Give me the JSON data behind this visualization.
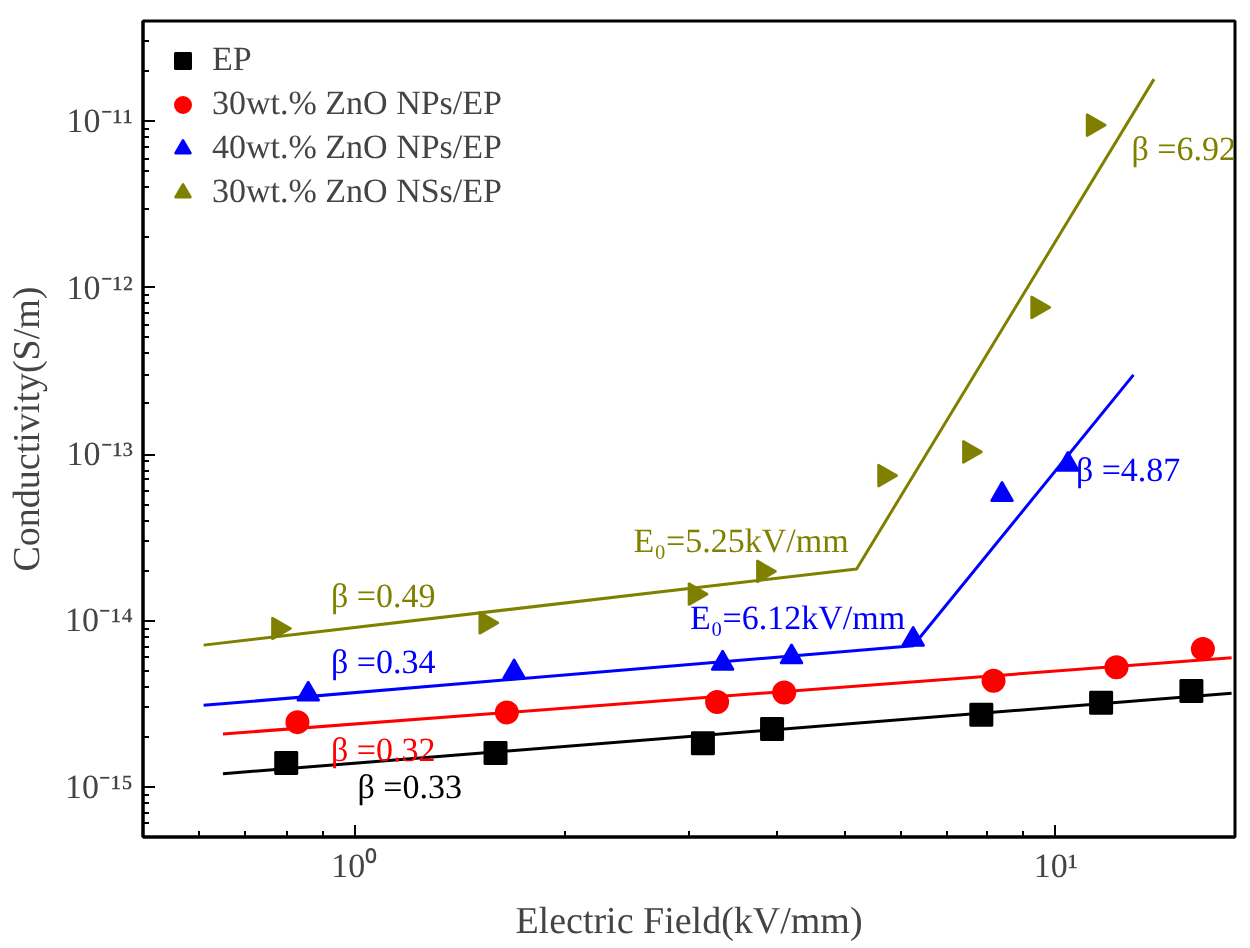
{
  "chart_data": {
    "type": "scatter",
    "xlabel": "Electric Field(kV/mm)",
    "ylabel": "Conductivity(S/m)",
    "log": "xy",
    "grid": false,
    "legend": "top left",
    "xlim": [
      0.5,
      18
    ],
    "ylim": [
      5e-16,
      4e-11
    ],
    "xticks": [
      {
        "value": 1,
        "label": "10⁰"
      },
      {
        "value": 10,
        "label": "10¹"
      }
    ],
    "yticks": [
      {
        "value": 1e-15,
        "label": "10⁻¹⁵"
      },
      {
        "value": 1e-14,
        "label": "10⁻¹⁴"
      },
      {
        "value": 1e-13,
        "label": "10⁻¹³"
      },
      {
        "value": 1e-12,
        "label": "10⁻¹²"
      },
      {
        "value": 1e-11,
        "label": "10⁻¹¹"
      }
    ],
    "series": [
      {
        "name": "EP",
        "color": "#000000",
        "marker": "square",
        "x": [
          0.8,
          1.59,
          3.14,
          3.94,
          7.83,
          11.6,
          15.6
        ],
        "values": [
          1.39e-15,
          1.6e-15,
          1.83e-15,
          2.23e-15,
          2.71e-15,
          3.2e-15,
          3.77e-15
        ]
      },
      {
        "name": "30wt.% ZnO NPs/EP",
        "color": "#ff0000",
        "marker": "circle",
        "x": [
          0.83,
          1.65,
          3.29,
          4.1,
          8.15,
          12.2,
          16.2
        ],
        "values": [
          2.45e-15,
          2.8e-15,
          3.24e-15,
          3.69e-15,
          4.35e-15,
          5.24e-15,
          6.75e-15
        ]
      },
      {
        "name": "40wt.% ZnO NPs/EP",
        "color": "#0000ff",
        "marker": "triangle",
        "x": [
          0.86,
          1.69,
          3.35,
          4.2,
          6.26,
          8.38,
          10.4
        ],
        "values": [
          3.61e-15,
          4.9e-15,
          5.53e-15,
          6.04e-15,
          7.69e-15,
          5.71e-14,
          8.67e-14
        ]
      },
      {
        "name": "30wt.% ZnO NSs/EP",
        "color": "#808000",
        "marker": "triangle",
        "x": [
          0.78,
          1.54,
          3.06,
          3.83,
          5.7,
          7.53,
          9.42,
          11.3
        ],
        "values": [
          8.95e-15,
          9.68e-15,
          1.44e-14,
          1.97e-14,
          7.43e-14,
          1.03e-13,
          7.6e-13,
          9.46e-12
        ]
      },
      {
        "type": "line",
        "color": "#000000",
        "x": [
          0.65,
          17.8
        ],
        "values": [
          1.2e-15,
          3.65e-15
        ]
      },
      {
        "type": "line",
        "color": "#ff0000",
        "x": [
          0.65,
          17.8
        ],
        "values": [
          2.08e-15,
          5.97e-15
        ]
      },
      {
        "type": "line",
        "color": "#0000ff",
        "x": [
          0.61,
          6.26,
          12.9
        ],
        "values": [
          3.09e-15,
          7.05e-15,
          2.99e-13
        ]
      },
      {
        "type": "line",
        "color": "#808000",
        "x": [
          0.61,
          5.2,
          13.8
        ],
        "values": [
          7.11e-15,
          2.04e-14,
          1.79e-11
        ]
      }
    ],
    "annotations": [
      {
        "text": "β =0.33",
        "x": 1.2,
        "y": 1.48e-15
      },
      {
        "text": "β =0.32",
        "x": 1.1,
        "y": 2.47e-15
      },
      {
        "text": "β =0.34",
        "x": 1.1,
        "y": 3.81e-15
      },
      {
        "text": "β =0.49",
        "x": 1.1,
        "y": 9.51e-15
      },
      {
        "text": "E₀=5.25kV/mm",
        "x": 5.2,
        "y": 2.04e-14
      },
      {
        "text": "E₀=6.12kV/mm",
        "x": 6.26,
        "y": 7.05e-15
      },
      {
        "text": "β =4.87",
        "x": 10,
        "y": 8e-14
      },
      {
        "text": "β =6.92",
        "x": 12,
        "y": 6.79e-12
      }
    ]
  }
}
